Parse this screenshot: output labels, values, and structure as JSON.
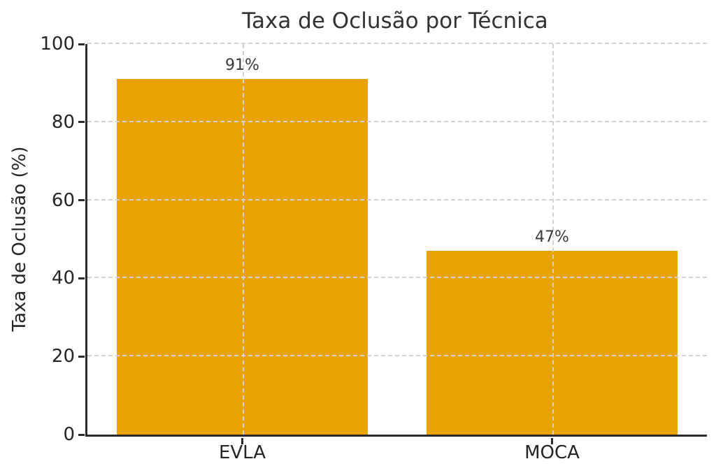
{
  "chart_data": {
    "type": "bar",
    "title": "Taxa de Oclusão por Técnica",
    "ylabel": "Taxa de Oclusão (%)",
    "xlabel": "",
    "categories": [
      "EVLA",
      "MOCA"
    ],
    "values": [
      91,
      47
    ],
    "value_labels": [
      "91%",
      "47%"
    ],
    "ylim": [
      0,
      100
    ],
    "yticks": [
      0,
      20,
      40,
      60,
      80,
      100
    ],
    "grid": true,
    "grid_style": "dashed",
    "grid_layers": "above-bars",
    "legend_position": "none",
    "colors": {
      "bar": "#E8A202",
      "grid": "#d2d2d2",
      "spine": "#2b2b2b",
      "title_text": "#333333",
      "tick_text": "#262626",
      "annotation_text": "#3a3a3a"
    }
  }
}
